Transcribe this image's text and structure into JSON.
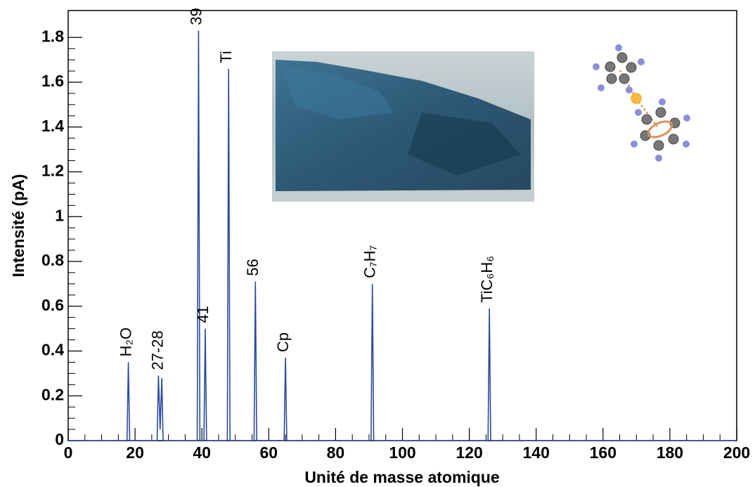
{
  "chart_data": {
    "type": "line",
    "x_label": "Unité de masse atomique",
    "y_label": "Intensité (pA)",
    "x": [
      0,
      17.6,
      18,
      18.4,
      26.6,
      27,
      27.5,
      28,
      28.4,
      38.6,
      39,
      39.4,
      40.6,
      41,
      41.4,
      47.6,
      48,
      48.4,
      55.6,
      56,
      56.4,
      64.6,
      65,
      65.4,
      90.6,
      91,
      91.4,
      125.6,
      126,
      126.4,
      200
    ],
    "values": [
      0,
      0,
      0.35,
      0,
      0,
      0.29,
      0.05,
      0.28,
      0,
      0,
      1.83,
      0,
      0,
      0.5,
      0,
      0,
      1.66,
      0,
      0,
      0.71,
      0,
      0,
      0.37,
      0,
      0,
      0.7,
      0,
      0,
      0.59,
      0,
      0
    ],
    "color": "#2d4b9c",
    "xlim": [
      0,
      200
    ],
    "xticks": [
      0,
      20,
      40,
      60,
      80,
      100,
      120,
      140,
      160,
      180,
      200
    ],
    "ylim": [
      0,
      1.92
    ],
    "yticks": [
      0,
      0.2,
      0.4,
      0.6,
      0.8,
      1,
      1.2,
      1.4,
      1.6,
      1.8
    ],
    "annotations": [
      {
        "text": "H₂O",
        "x": 18
      },
      {
        "text": "27-28",
        "x": 27.5
      },
      {
        "text": "39",
        "x": 39
      },
      {
        "text": "41",
        "x": 41
      },
      {
        "text": "Ti",
        "x": 48
      },
      {
        "text": "56",
        "x": 56
      },
      {
        "text": "Cp",
        "x": 65
      },
      {
        "text": "C₇H₇",
        "x": 91
      },
      {
        "text": "TiC₆H₆",
        "x": 126
      }
    ]
  }
}
